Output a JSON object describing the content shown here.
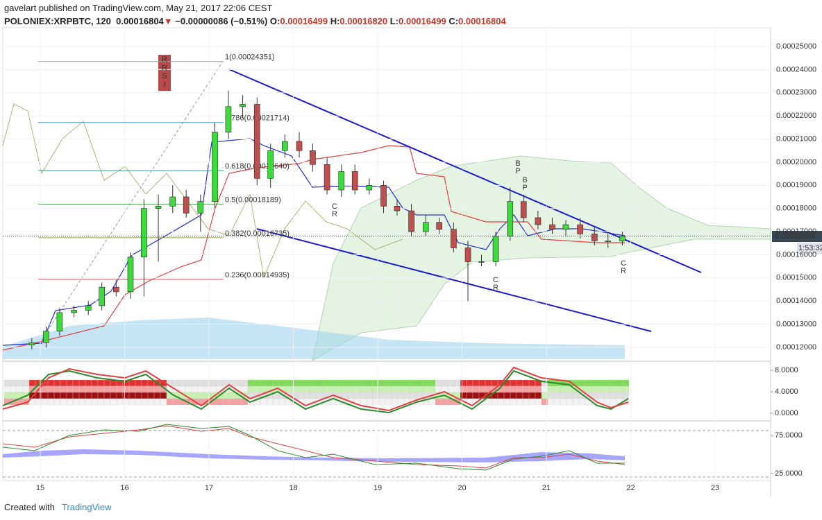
{
  "header": {
    "publisher": "gavelart published on TradingView.com, May 21, 2017 22:06 CEST",
    "symbol": "POLONIEX:XRPBTC, 120",
    "last": "0.00016804",
    "arrow": "▼",
    "change": "−0.00000086 (−0.51%)",
    "o_label": "O:",
    "open": "0.00016499",
    "h_label": "H:",
    "high": "0.00016820",
    "l_label": "L:",
    "low": "0.00016499",
    "c_label": "C:",
    "close": "0.00016804"
  },
  "footer": {
    "created": "Created with",
    "brand": "TradingView"
  },
  "chart_data": [
    {
      "type": "candlestick",
      "up_color": "#3ddc3d",
      "down_color": "#c0504d",
      "x": [
        14.9,
        15.07,
        15.23,
        15.4,
        15.57,
        15.73,
        15.9,
        16.07,
        16.23,
        16.4,
        16.57,
        16.73,
        16.9,
        17.07,
        17.23,
        17.4,
        17.57,
        17.73,
        17.9,
        18.07,
        18.23,
        18.4,
        18.57,
        18.73,
        18.9,
        19.07,
        19.23,
        19.4,
        19.57,
        19.73,
        19.9,
        20.07,
        20.23,
        20.4,
        20.57,
        20.73,
        20.9,
        21.07,
        21.23,
        21.4,
        21.57,
        21.73,
        21.9
      ],
      "open": [
        0.000121,
        0.000122,
        0.000127,
        0.000135,
        0.000136,
        0.000138,
        0.000146,
        0.000144,
        0.000159,
        0.00018,
        0.000181,
        0.000185,
        0.000178,
        0.000183,
        0.000213,
        0.000224,
        0.000225,
        0.000193,
        0.000205,
        0.000209,
        0.000205,
        0.000199,
        0.000188,
        0.000196,
        0.000188,
        0.00019,
        0.000181,
        0.000179,
        0.00017,
        0.000174,
        0.000171,
        0.000163,
        0.000157,
        0.000157,
        0.000168,
        0.000183,
        0.000176,
        0.000173,
        0.000171,
        0.000173,
        0.000169,
        0.000166,
        0.000166
      ],
      "high": [
        0.000124,
        0.000129,
        0.000137,
        0.000138,
        0.00014,
        0.000148,
        0.000149,
        0.000161,
        0.000184,
        0.000186,
        0.00019,
        0.000188,
        0.000186,
        0.000217,
        0.000231,
        0.000229,
        0.000228,
        0.000208,
        0.000212,
        0.000213,
        0.000208,
        0.000202,
        0.000199,
        0.000199,
        0.000193,
        0.000192,
        0.000184,
        0.000182,
        0.000177,
        0.000176,
        0.000174,
        0.000166,
        0.00016,
        0.00017,
        0.000189,
        0.000186,
        0.000179,
        0.000176,
        0.000175,
        0.000176,
        0.000172,
        0.000169,
        0.00017
      ],
      "low": [
        0.000119,
        0.00012,
        0.000125,
        0.000133,
        0.000134,
        0.000136,
        0.000142,
        0.000141,
        0.000142,
        0.000157,
        0.000178,
        0.000176,
        0.00017,
        0.00018,
        0.00021,
        0.000219,
        0.00019,
        0.000189,
        0.000202,
        0.000202,
        0.000196,
        0.000186,
        0.000185,
        0.000186,
        0.000186,
        0.000178,
        0.000177,
        0.000168,
        0.000168,
        0.000169,
        0.000161,
        0.00014,
        0.000155,
        0.000155,
        0.000166,
        0.000174,
        0.000171,
        0.000169,
        0.000168,
        0.000167,
        0.000164,
        0.000163,
        0.000164
      ],
      "close": [
        0.000122,
        0.000127,
        0.000135,
        0.000136,
        0.000138,
        0.000146,
        0.000144,
        0.000159,
        0.00018,
        0.000181,
        0.000185,
        0.000178,
        0.000183,
        0.000213,
        0.000224,
        0.000225,
        0.000193,
        0.000205,
        0.000209,
        0.000205,
        0.000199,
        0.000188,
        0.000196,
        0.000188,
        0.00019,
        0.000181,
        0.000179,
        0.00017,
        0.000174,
        0.000171,
        0.000163,
        0.000157,
        0.000157,
        0.000168,
        0.000183,
        0.000176,
        0.000173,
        0.000171,
        0.000173,
        0.000169,
        0.000166,
        0.000166,
        0.00016804
      ],
      "fib": [
        {
          "label": "1(0.00024351)",
          "value": 0.00024351,
          "color": "#9e9e9e"
        },
        {
          "label": "0.786(0.00021714)",
          "value": 0.00021714,
          "color": "#4aa3c8"
        },
        {
          "label": "0.618(0.00019640)",
          "value": 0.0001964,
          "color": "#26a69a"
        },
        {
          "label": "0.5(0.00018189)",
          "value": 0.00018189,
          "color": "#4caf50"
        },
        {
          "label": "0.382(0.00016735)",
          "value": 0.00016735,
          "color": "#9aa23a"
        },
        {
          "label": "0.236(0.00014935)",
          "value": 0.00014935,
          "color": "#e05050"
        }
      ],
      "annotations": [
        "RRSI",
        "BP",
        "BP",
        "CR",
        "CR",
        "CR"
      ],
      "last_price_label": "0.00016804",
      "countdown": "1:53:32",
      "xlim": [
        14.523,
        23.658
      ],
      "xticks": [
        15,
        16,
        17,
        18,
        19,
        20,
        21,
        22,
        23
      ],
      "ylim": [
        0.0001143,
        0.0002581
      ],
      "yticks": [
        {
          "value": 0.00025,
          "label": "0.00025000"
        },
        {
          "value": 0.00024,
          "label": "0.00024000"
        },
        {
          "value": 0.00023,
          "label": "0.00023000"
        },
        {
          "value": 0.00022,
          "label": "0.00022000"
        },
        {
          "value": 0.00021,
          "label": "0.00021000"
        },
        {
          "value": 0.0002,
          "label": "0.00020000"
        },
        {
          "value": 0.00019,
          "label": "0.00019000"
        },
        {
          "value": 0.00018,
          "label": "0.00018000"
        },
        {
          "value": 0.00017,
          "label": "0.00017000"
        },
        {
          "value": 0.00016,
          "label": "0.00016000"
        },
        {
          "value": 0.00015,
          "label": "0.00015000"
        },
        {
          "value": 0.00014,
          "label": "0.00014000"
        },
        {
          "value": 0.00013,
          "label": "0.00013000"
        },
        {
          "value": 0.00012,
          "label": "0.00012000"
        }
      ],
      "grid": true
    },
    {
      "type": "indicator",
      "ylim": [
        -1.16,
        9.55
      ],
      "yticks": [
        {
          "value": 8,
          "label": "8.0000"
        },
        {
          "value": 4,
          "label": "4.0000"
        },
        {
          "value": 0,
          "label": "0.0000"
        }
      ]
    },
    {
      "type": "indicator",
      "ylim": [
        18.5,
        93.5
      ],
      "yticks": [
        {
          "value": 75,
          "label": "75.0000"
        },
        {
          "value": 25,
          "label": "25.0000"
        }
      ]
    }
  ]
}
